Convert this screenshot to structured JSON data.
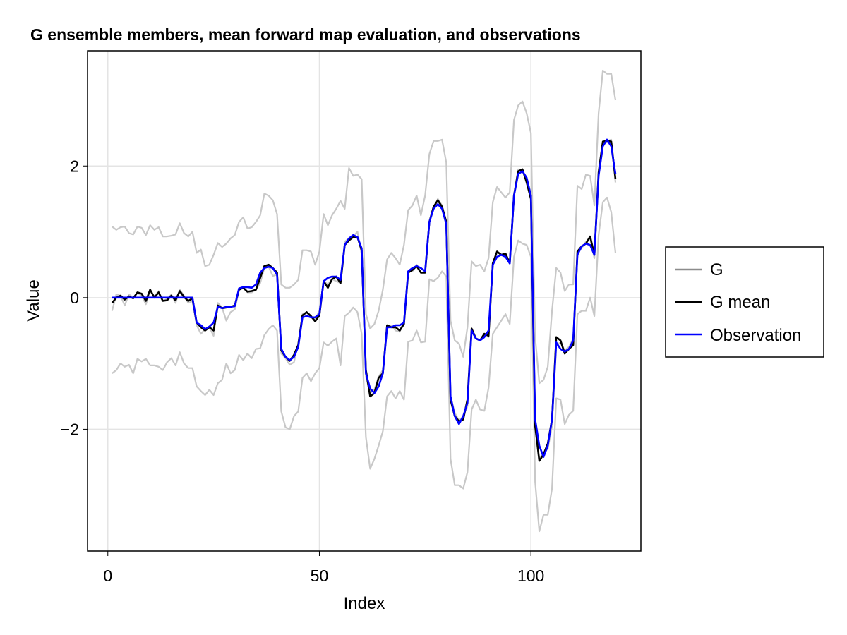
{
  "chart_data": {
    "type": "line",
    "title": "G ensemble members, mean forward map evaluation, and observations",
    "xlabel": "Index",
    "ylabel": "Value",
    "xlim": [
      -4.8,
      126
    ],
    "ylim": [
      -3.85,
      3.75
    ],
    "xticks": [
      0,
      50,
      100
    ],
    "yticks": [
      -2,
      0,
      2
    ],
    "xtick_labels": [
      "0",
      "50",
      "100"
    ],
    "ytick_labels": [
      "−2",
      "0",
      "2"
    ],
    "grid": true,
    "legend_position": "right",
    "legend": [
      {
        "label": "G",
        "color": "#8c8c8c"
      },
      {
        "label": "G mean",
        "color": "#000000"
      },
      {
        "label": "Observation",
        "color": "#0000ff"
      }
    ],
    "x": [
      1,
      2,
      3,
      4,
      5,
      6,
      7,
      8,
      9,
      10,
      11,
      12,
      13,
      14,
      15,
      16,
      17,
      18,
      19,
      20,
      21,
      22,
      23,
      24,
      25,
      26,
      27,
      28,
      29,
      30,
      31,
      32,
      33,
      34,
      35,
      36,
      37,
      38,
      39,
      40,
      41,
      42,
      43,
      44,
      45,
      46,
      47,
      48,
      49,
      50,
      51,
      52,
      53,
      54,
      55,
      56,
      57,
      58,
      59,
      60,
      61,
      62,
      63,
      64,
      65,
      66,
      67,
      68,
      69,
      70,
      71,
      72,
      73,
      74,
      75,
      76,
      77,
      78,
      79,
      80,
      81,
      82,
      83,
      84,
      85,
      86,
      87,
      88,
      89,
      90,
      91,
      92,
      93,
      94,
      95,
      96,
      97,
      98,
      99,
      100,
      101,
      102,
      103,
      104,
      105,
      106,
      107,
      108,
      109,
      110,
      111,
      112,
      113,
      114,
      115,
      116,
      117,
      118,
      119,
      120
    ],
    "series": [
      {
        "name": "G",
        "color": "#c8c8c8",
        "values": [
          1.08,
          1.03,
          1.07,
          1.08,
          0.98,
          0.96,
          1.08,
          1.06,
          0.95,
          1.1,
          1.03,
          1.07,
          0.93,
          0.93,
          0.94,
          0.96,
          1.13,
          0.98,
          0.93,
          1.0,
          0.68,
          0.73,
          0.48,
          0.5,
          0.65,
          0.83,
          0.77,
          0.82,
          0.9,
          0.95,
          1.15,
          1.22,
          1.05,
          1.07,
          1.15,
          1.25,
          1.58,
          1.55,
          1.48,
          1.27,
          0.2,
          0.15,
          0.15,
          0.2,
          0.27,
          0.72,
          0.72,
          0.7,
          0.5,
          0.7,
          1.27,
          1.1,
          1.25,
          1.35,
          1.47,
          1.35,
          1.97,
          1.85,
          1.87,
          1.8,
          -0.25,
          -0.47,
          -0.4,
          -0.2,
          0.12,
          0.58,
          0.68,
          0.6,
          0.5,
          0.8,
          1.33,
          1.4,
          1.55,
          1.25,
          1.55,
          2.18,
          2.38,
          2.38,
          2.4,
          2.05,
          -0.35,
          -0.65,
          -0.7,
          -0.9,
          -0.45,
          0.55,
          0.48,
          0.5,
          0.4,
          0.6,
          1.45,
          1.68,
          1.6,
          1.52,
          1.6,
          2.7,
          2.92,
          2.98,
          2.8,
          2.5,
          -0.6,
          -1.3,
          -1.25,
          -1.05,
          -0.2,
          0.45,
          0.38,
          0.1,
          0.2,
          0.2,
          1.7,
          1.65,
          1.87,
          1.85,
          1.4,
          2.8,
          3.45,
          3.4,
          3.4,
          3.0
        ]
      },
      {
        "name": "",
        "color": "#c8c8c8",
        "values": [
          -1.15,
          -1.1,
          -1.0,
          -1.05,
          -1.02,
          -1.15,
          -0.93,
          -0.97,
          -0.93,
          -1.03,
          -1.03,
          -1.05,
          -1.1,
          -0.98,
          -0.92,
          -1.03,
          -0.83,
          -1.0,
          -1.07,
          -1.07,
          -1.35,
          -1.42,
          -1.48,
          -1.4,
          -1.48,
          -1.3,
          -1.25,
          -1.0,
          -1.15,
          -1.1,
          -0.87,
          -0.95,
          -0.85,
          -0.92,
          -0.78,
          -0.77,
          -0.57,
          -0.48,
          -0.42,
          -0.5,
          -1.73,
          -1.97,
          -2.0,
          -1.8,
          -1.73,
          -1.22,
          -1.15,
          -1.27,
          -1.15,
          -1.07,
          -0.68,
          -0.73,
          -0.67,
          -0.62,
          -1.03,
          -0.28,
          -0.23,
          -0.15,
          -0.22,
          -0.55,
          -2.12,
          -2.6,
          -2.45,
          -2.25,
          -2.03,
          -1.5,
          -1.42,
          -1.53,
          -1.42,
          -1.55,
          -0.67,
          -0.65,
          -0.5,
          -0.68,
          -0.67,
          0.28,
          0.25,
          0.3,
          0.4,
          0.32,
          -2.45,
          -2.85,
          -2.85,
          -2.9,
          -2.65,
          -1.7,
          -1.55,
          -1.7,
          -1.72,
          -1.37,
          -0.55,
          -0.45,
          -0.35,
          -0.25,
          -0.4,
          0.62,
          0.87,
          0.82,
          0.8,
          0.62,
          -2.8,
          -3.55,
          -3.3,
          -3.3,
          -2.9,
          -1.53,
          -1.55,
          -1.92,
          -1.78,
          -1.72,
          -0.25,
          -0.2,
          -0.2,
          0.0,
          -0.28,
          0.95,
          1.45,
          1.52,
          1.3,
          0.68
        ]
      },
      {
        "name": "",
        "color": "#c8c8c8",
        "values": [
          -0.2,
          0.05,
          0.03,
          -0.12,
          0.05,
          0.0,
          0.07,
          0.03,
          -0.1,
          0.1,
          0.02,
          0.1,
          -0.05,
          -0.02,
          0.05,
          -0.08,
          0.12,
          0.03,
          -0.08,
          -0.05,
          -0.42,
          -0.55,
          -0.48,
          -0.45,
          -0.58,
          -0.08,
          -0.15,
          -0.35,
          -0.22,
          -0.18,
          0.12,
          0.15,
          0.08,
          0.08,
          0.12,
          0.22,
          0.45,
          0.47,
          0.33,
          0.35,
          -0.85,
          -0.92,
          -1.02,
          -0.98,
          -0.7,
          -0.25,
          -0.22,
          -0.3,
          -0.33,
          -0.2,
          0.25,
          0.2,
          0.28,
          0.25,
          0.22,
          0.85,
          0.9,
          0.93,
          1.0,
          0.65,
          -1.2,
          -1.45,
          -1.4,
          -1.2,
          -1.1,
          -0.47,
          -0.42,
          -0.5,
          -0.52,
          -0.35,
          0.4,
          0.4,
          0.5,
          0.38,
          0.38,
          1.15,
          1.35,
          1.5,
          1.4,
          1.08,
          -1.5,
          -1.75,
          -1.87,
          -1.8,
          -1.65,
          -0.5,
          -0.62,
          -0.65,
          -0.55,
          -0.6,
          0.5,
          0.7,
          0.65,
          0.62,
          0.55,
          1.55,
          1.95,
          1.92,
          1.8,
          1.5,
          -1.85,
          -2.45,
          -2.35,
          -2.3,
          -1.95,
          -0.72,
          -0.68,
          -0.8,
          -0.75,
          -0.62,
          0.68,
          0.75,
          0.85,
          0.9,
          0.6,
          1.85,
          2.35,
          2.38,
          2.4,
          1.75
        ]
      },
      {
        "name": "G mean",
        "color": "#000000",
        "values": [
          -0.08,
          0.0,
          0.03,
          -0.03,
          0.02,
          -0.01,
          0.08,
          0.06,
          -0.05,
          0.12,
          0.0,
          0.08,
          -0.05,
          -0.04,
          0.03,
          -0.04,
          0.1,
          0.01,
          -0.05,
          -0.01,
          -0.38,
          -0.45,
          -0.5,
          -0.45,
          -0.5,
          -0.12,
          -0.16,
          -0.15,
          -0.14,
          -0.12,
          0.12,
          0.15,
          0.09,
          0.1,
          0.12,
          0.3,
          0.48,
          0.5,
          0.45,
          0.38,
          -0.8,
          -0.9,
          -0.96,
          -0.87,
          -0.72,
          -0.27,
          -0.22,
          -0.28,
          -0.36,
          -0.27,
          0.25,
          0.15,
          0.28,
          0.32,
          0.22,
          0.8,
          0.87,
          0.92,
          0.92,
          0.72,
          -1.1,
          -1.5,
          -1.45,
          -1.22,
          -1.15,
          -0.42,
          -0.45,
          -0.45,
          -0.5,
          -0.4,
          0.38,
          0.42,
          0.48,
          0.38,
          0.38,
          1.15,
          1.38,
          1.48,
          1.38,
          1.15,
          -1.55,
          -1.8,
          -1.88,
          -1.85,
          -1.55,
          -0.47,
          -0.62,
          -0.65,
          -0.55,
          -0.58,
          0.52,
          0.7,
          0.65,
          0.67,
          0.52,
          1.55,
          1.92,
          1.95,
          1.75,
          1.5,
          -1.95,
          -2.48,
          -2.38,
          -2.22,
          -1.85,
          -0.6,
          -0.65,
          -0.85,
          -0.78,
          -0.72,
          0.7,
          0.78,
          0.82,
          0.93,
          0.65,
          1.9,
          2.37,
          2.38,
          2.37,
          1.8
        ]
      },
      {
        "name": "Observation",
        "color": "#0000ff",
        "values": [
          0.0,
          0.0,
          0.0,
          0.0,
          0.0,
          0.0,
          0.0,
          0.0,
          0.0,
          0.0,
          0.0,
          0.0,
          0.0,
          0.0,
          0.0,
          0.0,
          0.0,
          0.0,
          0.0,
          0.0,
          -0.38,
          -0.42,
          -0.48,
          -0.44,
          -0.38,
          -0.14,
          -0.16,
          -0.14,
          -0.14,
          -0.13,
          0.14,
          0.16,
          0.16,
          0.15,
          0.2,
          0.38,
          0.45,
          0.47,
          0.45,
          0.35,
          -0.78,
          -0.9,
          -0.95,
          -0.9,
          -0.75,
          -0.3,
          -0.28,
          -0.3,
          -0.3,
          -0.25,
          0.25,
          0.3,
          0.32,
          0.32,
          0.27,
          0.8,
          0.9,
          0.95,
          0.92,
          0.75,
          -1.15,
          -1.38,
          -1.45,
          -1.35,
          -1.15,
          -0.45,
          -0.45,
          -0.42,
          -0.42,
          -0.38,
          0.4,
          0.45,
          0.48,
          0.45,
          0.4,
          1.15,
          1.35,
          1.42,
          1.35,
          1.12,
          -1.5,
          -1.8,
          -1.92,
          -1.8,
          -1.6,
          -0.5,
          -0.62,
          -0.65,
          -0.6,
          -0.5,
          0.5,
          0.62,
          0.65,
          0.62,
          0.52,
          1.55,
          1.88,
          1.92,
          1.82,
          1.55,
          -1.85,
          -2.25,
          -2.42,
          -2.25,
          -1.85,
          -0.68,
          -0.78,
          -0.82,
          -0.78,
          -0.65,
          0.65,
          0.78,
          0.82,
          0.8,
          0.65,
          1.85,
          2.3,
          2.4,
          2.3,
          1.88
        ]
      }
    ]
  }
}
